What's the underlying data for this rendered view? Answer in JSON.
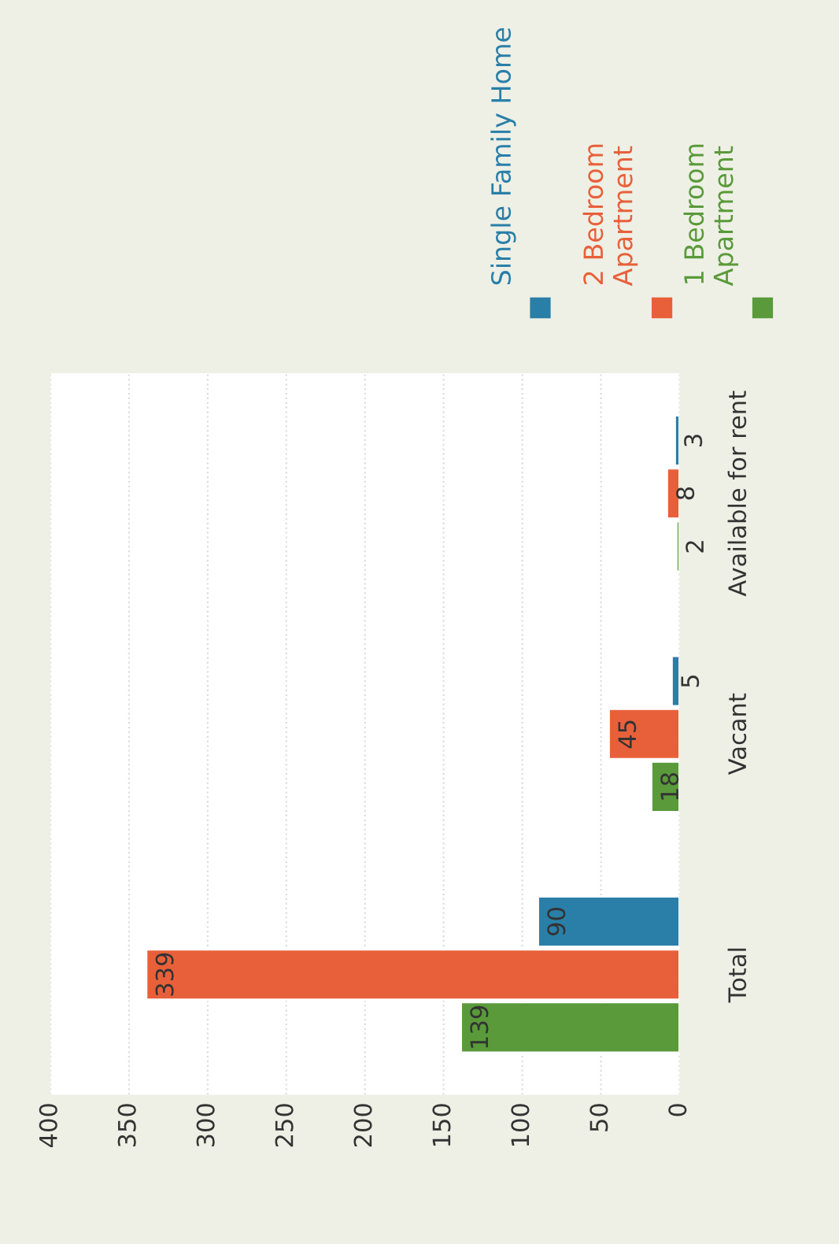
{
  "chart_data": {
    "type": "bar",
    "orientation": "horizontal",
    "categories": [
      "Available for rent",
      "Vacant",
      "Total"
    ],
    "series": [
      {
        "name": "1 Bedroom Apartment",
        "color": "#5a9a3a",
        "values": [
          2,
          18,
          139
        ]
      },
      {
        "name": "2 Bedroom Apartment",
        "color": "#e8603a",
        "values": [
          8,
          45,
          339
        ]
      },
      {
        "name": "Single Family Home",
        "color": "#2a7fa8",
        "values": [
          3,
          5,
          90
        ]
      }
    ],
    "xlim": [
      400,
      0
    ],
    "xticks": [
      0,
      50,
      100,
      150,
      200,
      250,
      300,
      350,
      400
    ],
    "data_labels": true,
    "grid": "x",
    "legend": "top"
  }
}
